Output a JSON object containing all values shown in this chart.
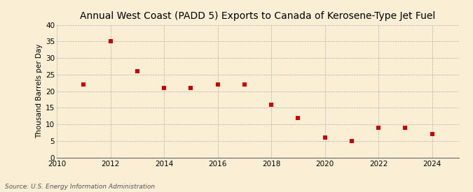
{
  "title": "Annual West Coast (PADD 5) Exports to Canada of Kerosene-Type Jet Fuel",
  "ylabel": "Thousand Barrels per Day",
  "source": "Source: U.S. Energy Information Administration",
  "background_color": "#faefd4",
  "x_values": [
    2011,
    2012,
    2013,
    2014,
    2015,
    2016,
    2017,
    2018,
    2019,
    2020,
    2021,
    2022,
    2023,
    2024
  ],
  "y_values": [
    22,
    35,
    26,
    21,
    21,
    22,
    22,
    16,
    12,
    6,
    5,
    9,
    9,
    7
  ],
  "marker_color": "#cc0000",
  "marker_size": 18,
  "xlim": [
    2010,
    2025
  ],
  "ylim": [
    0,
    40
  ],
  "yticks": [
    0,
    5,
    10,
    15,
    20,
    25,
    30,
    35,
    40
  ],
  "xticks": [
    2010,
    2012,
    2014,
    2016,
    2018,
    2020,
    2022,
    2024
  ],
  "grid_color": "#b0b0b0",
  "title_fontsize": 10,
  "label_fontsize": 7.5,
  "tick_fontsize": 7.5,
  "source_fontsize": 6.5
}
